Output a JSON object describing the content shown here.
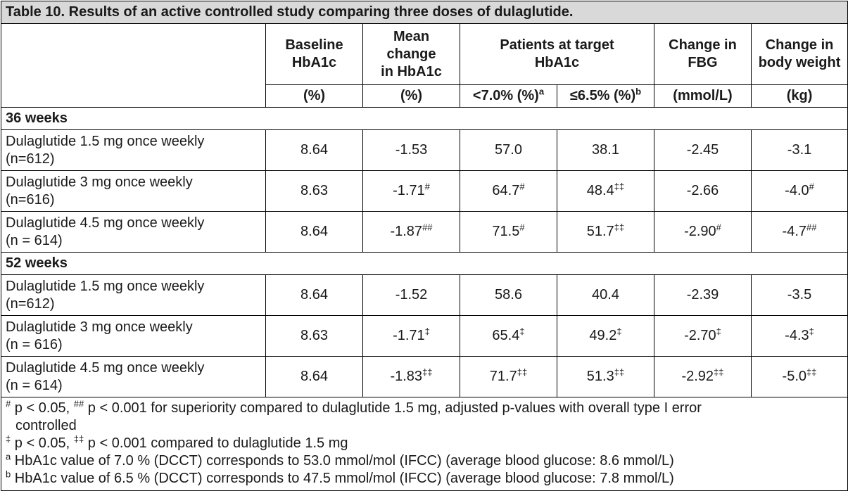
{
  "title": "Table 10. Results of an active controlled study comparing three doses of dulaglutide.",
  "headers": {
    "baseline": [
      "Baseline",
      "HbA1c"
    ],
    "mean_change": [
      "Mean",
      "change",
      "in HbA1c"
    ],
    "patients_target": [
      "Patients at target",
      "HbA1c"
    ],
    "change_fbg": [
      "Change in",
      "FBG"
    ],
    "change_weight": [
      "Change in",
      "body weight"
    ]
  },
  "units": {
    "baseline": "(%)",
    "mean_change": "(%)",
    "target_lt7": "<7.0% (%)",
    "target_lt7_sup": "a",
    "target_le65": "≤6.5% (%)",
    "target_le65_sup": "b",
    "fbg": "(mmol/L)",
    "weight": "(kg)"
  },
  "sections": [
    {
      "label": "36 weeks",
      "rows": [
        {
          "name1": "Dulaglutide 1.5 mg once weekly",
          "name2": "(n=612)",
          "baseline": "8.64",
          "change": "-1.53",
          "change_sup": "",
          "lt7": "57.0",
          "lt7_sup": "",
          "le65": "38.1",
          "le65_sup": "",
          "fbg": "-2.45",
          "fbg_sup": "",
          "weight": "-3.1",
          "weight_sup": ""
        },
        {
          "name1": "Dulaglutide 3 mg once weekly",
          "name2": "(n=616)",
          "baseline": "8.63",
          "change": "-1.71",
          "change_sup": "#",
          "lt7": "64.7",
          "lt7_sup": "#",
          "le65": "48.4",
          "le65_sup": "‡‡",
          "fbg": "-2.66",
          "fbg_sup": "",
          "weight": "-4.0",
          "weight_sup": "#"
        },
        {
          "name1": "Dulaglutide 4.5 mg once weekly",
          "name2": "(n = 614)",
          "baseline": "8.64",
          "change": "-1.87",
          "change_sup": "##",
          "lt7": "71.5",
          "lt7_sup": "#",
          "le65": "51.7",
          "le65_sup": "‡‡",
          "fbg": "-2.90",
          "fbg_sup": "#",
          "weight": "-4.7",
          "weight_sup": "##"
        }
      ]
    },
    {
      "label": "52 weeks",
      "rows": [
        {
          "name1": "Dulaglutide 1.5 mg once weekly",
          "name2": "(n=612)",
          "baseline": "8.64",
          "change": "-1.52",
          "change_sup": "",
          "lt7": "58.6",
          "lt7_sup": "",
          "le65": "40.4",
          "le65_sup": "",
          "fbg": "-2.39",
          "fbg_sup": "",
          "weight": "-3.5",
          "weight_sup": ""
        },
        {
          "name1": "Dulaglutide 3 mg once weekly",
          "name2": "(n = 616)",
          "baseline": "8.63",
          "change": "-1.71",
          "change_sup": "‡",
          "lt7": "65.4",
          "lt7_sup": "‡",
          "le65": "49.2",
          "le65_sup": "‡",
          "fbg": "-2.70",
          "fbg_sup": "‡",
          "weight": "-4.3",
          "weight_sup": "‡"
        },
        {
          "name1": "Dulaglutide 4.5 mg once weekly",
          "name2": "(n = 614)",
          "baseline": "8.64",
          "change": "-1.83",
          "change_sup": "‡‡",
          "lt7": "71.7",
          "lt7_sup": "‡‡",
          "le65": "51.3",
          "le65_sup": "‡‡",
          "fbg": "-2.92",
          "fbg_sup": "‡‡",
          "weight": "-5.0",
          "weight_sup": "‡‡"
        }
      ]
    }
  ],
  "footnotes": [
    {
      "sup": "#",
      "text": " p < 0.05, ",
      "sup2": "##",
      "text2": " p < 0.001 for superiority compared to dulaglutide 1.5 mg, adjusted p-values with overall type I error",
      "cont": "controlled"
    },
    {
      "sup": "‡",
      "text": " p < 0.05, ",
      "sup2": "‡‡",
      "text2": " p < 0.001 compared to dulaglutide 1.5 mg",
      "cont": ""
    },
    {
      "sup": "a",
      "text": " HbA1c value of 7.0 % (DCCT) corresponds to 53.0 mmol/mol (IFCC) (average blood glucose: 8.6 mmol/L)",
      "sup2": "",
      "text2": "",
      "cont": ""
    },
    {
      "sup": "b",
      "text": " HbA1c value of 6.5 % (DCCT) corresponds to 47.5 mmol/mol (IFCC) (average blood glucose: 7.8 mmol/L)",
      "sup2": "",
      "text2": "",
      "cont": ""
    }
  ]
}
